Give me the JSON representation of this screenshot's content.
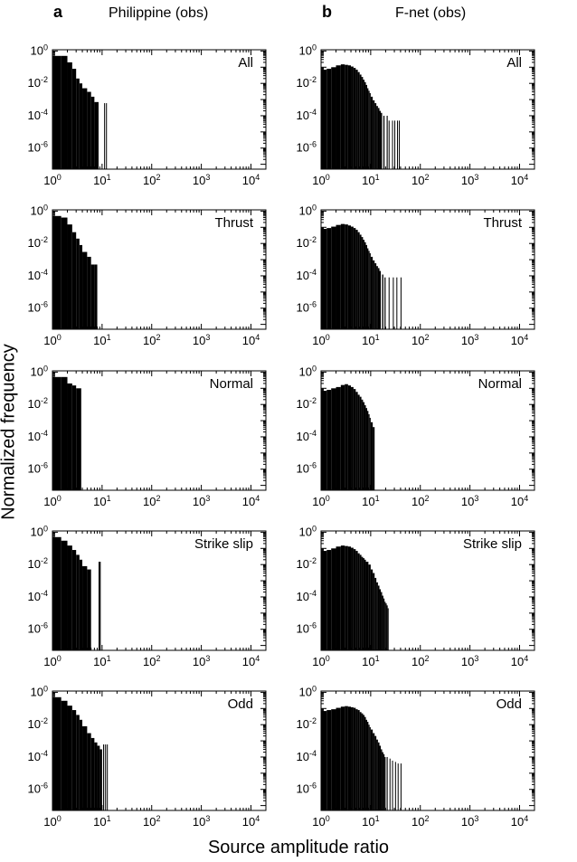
{
  "figure": {
    "ylabel": "Normalized frequency",
    "xlabel": "Source amplitude ratio",
    "columns": [
      {
        "letter": "a",
        "title": "Philippine (obs)"
      },
      {
        "letter": "b",
        "title": "F-net (obs)"
      }
    ]
  },
  "chart_data": [
    {
      "type": "bar",
      "column": "a",
      "panel_label": "All",
      "xscale": "log",
      "yscale": "log",
      "xlim": [
        1,
        20000
      ],
      "ylim": [
        5e-08,
        1.2
      ],
      "bins": [
        [
          1,
          1.5,
          0.5
        ],
        [
          1.5,
          2,
          0.5
        ],
        [
          2,
          2.5,
          0.2
        ],
        [
          2.5,
          3,
          0.08
        ],
        [
          3,
          3.5,
          0.02
        ],
        [
          3.5,
          4,
          0.01
        ],
        [
          4,
          5,
          0.005
        ],
        [
          5,
          6,
          0.003
        ],
        [
          6,
          7,
          0.0015
        ],
        [
          7,
          8.5,
          0.0007
        ],
        [
          11,
          11.4,
          0.0006
        ],
        [
          12,
          12.4,
          0.0006
        ]
      ]
    },
    {
      "type": "bar",
      "column": "b",
      "panel_label": "All",
      "xscale": "log",
      "yscale": "log",
      "xlim": [
        1,
        20000
      ],
      "ylim": [
        5e-08,
        1.2
      ],
      "bins": [
        [
          1,
          1.3,
          0.07
        ],
        [
          1.3,
          1.6,
          0.08
        ],
        [
          1.6,
          2,
          0.1
        ],
        [
          2,
          2.5,
          0.13
        ],
        [
          2.5,
          3,
          0.15
        ],
        [
          3,
          3.5,
          0.14
        ],
        [
          3.5,
          4,
          0.13
        ],
        [
          4,
          4.5,
          0.11
        ],
        [
          4.5,
          5,
          0.09
        ],
        [
          5,
          5.5,
          0.07
        ],
        [
          5.5,
          6,
          0.05
        ],
        [
          6,
          6.5,
          0.035
        ],
        [
          6.5,
          7,
          0.025
        ],
        [
          7,
          7.5,
          0.017
        ],
        [
          7.5,
          8,
          0.012
        ],
        [
          8,
          8.5,
          0.008
        ],
        [
          8.5,
          9,
          0.005
        ],
        [
          9,
          9.5,
          0.0035
        ],
        [
          9.5,
          10,
          0.0025
        ],
        [
          10,
          11,
          0.0015
        ],
        [
          11,
          12,
          0.0009
        ],
        [
          12,
          13,
          0.0006
        ],
        [
          13,
          14,
          0.0004
        ],
        [
          14,
          15,
          0.0003
        ],
        [
          15,
          16,
          0.0002
        ],
        [
          16,
          17,
          0.00015
        ],
        [
          18,
          19,
          0.0001
        ],
        [
          21,
          22,
          0.0001
        ],
        [
          23,
          24,
          5e-05
        ],
        [
          27,
          28,
          5e-05
        ],
        [
          30,
          31,
          5e-05
        ],
        [
          34,
          35,
          5e-05
        ],
        [
          37,
          38,
          5e-05
        ]
      ]
    },
    {
      "type": "bar",
      "column": "a",
      "panel_label": "Thrust",
      "xscale": "log",
      "yscale": "log",
      "xlim": [
        1,
        20000
      ],
      "ylim": [
        5e-08,
        1.2
      ],
      "bins": [
        [
          1,
          1.5,
          0.5
        ],
        [
          1.5,
          2,
          0.4
        ],
        [
          2,
          2.5,
          0.15
        ],
        [
          2.5,
          3,
          0.05
        ],
        [
          3,
          3.5,
          0.02
        ],
        [
          3.5,
          4,
          0.008
        ],
        [
          4,
          5,
          0.003
        ],
        [
          5,
          6,
          0.0015
        ],
        [
          6,
          7,
          0.0005
        ],
        [
          7,
          8,
          0.0005
        ]
      ]
    },
    {
      "type": "bar",
      "column": "b",
      "panel_label": "Thrust",
      "xscale": "log",
      "yscale": "log",
      "xlim": [
        1,
        20000
      ],
      "ylim": [
        5e-08,
        1.2
      ],
      "bins": [
        [
          1,
          1.3,
          0.08
        ],
        [
          1.3,
          1.6,
          0.09
        ],
        [
          1.6,
          2,
          0.11
        ],
        [
          2,
          2.5,
          0.14
        ],
        [
          2.5,
          3,
          0.16
        ],
        [
          3,
          3.5,
          0.15
        ],
        [
          3.5,
          4,
          0.13
        ],
        [
          4,
          4.5,
          0.11
        ],
        [
          4.5,
          5,
          0.09
        ],
        [
          5,
          5.5,
          0.07
        ],
        [
          5.5,
          6,
          0.05
        ],
        [
          6,
          6.5,
          0.035
        ],
        [
          6.5,
          7,
          0.025
        ],
        [
          7,
          7.5,
          0.017
        ],
        [
          7.5,
          8,
          0.012
        ],
        [
          8,
          8.5,
          0.008
        ],
        [
          8.5,
          9,
          0.005
        ],
        [
          9,
          9.5,
          0.0035
        ],
        [
          9.5,
          10,
          0.0025
        ],
        [
          10,
          11,
          0.0015
        ],
        [
          11,
          12,
          0.0009
        ],
        [
          12,
          13,
          0.0006
        ],
        [
          13,
          14,
          0.0004
        ],
        [
          14,
          15,
          0.0003
        ],
        [
          15,
          16,
          0.0002
        ],
        [
          17,
          18,
          0.00012
        ],
        [
          19,
          20,
          8e-05
        ],
        [
          23,
          24,
          8e-05
        ],
        [
          28,
          29,
          8e-05
        ],
        [
          33,
          34,
          8e-05
        ],
        [
          40,
          41,
          8e-05
        ]
      ]
    },
    {
      "type": "bar",
      "column": "a",
      "panel_label": "Normal",
      "xscale": "log",
      "yscale": "log",
      "xlim": [
        1,
        20000
      ],
      "ylim": [
        5e-08,
        1.2
      ],
      "bins": [
        [
          1,
          1.5,
          0.5
        ],
        [
          1.5,
          2,
          0.5
        ],
        [
          2,
          2.5,
          0.2
        ],
        [
          2.5,
          3,
          0.15
        ],
        [
          3,
          3.8,
          0.1
        ]
      ]
    },
    {
      "type": "bar",
      "column": "b",
      "panel_label": "Normal",
      "xscale": "log",
      "yscale": "log",
      "xlim": [
        1,
        20000
      ],
      "ylim": [
        5e-08,
        1.2
      ],
      "bins": [
        [
          1,
          1.3,
          0.07
        ],
        [
          1.3,
          1.6,
          0.08
        ],
        [
          1.6,
          2,
          0.1
        ],
        [
          2,
          2.5,
          0.12
        ],
        [
          2.5,
          3,
          0.16
        ],
        [
          3,
          3.5,
          0.18
        ],
        [
          3.5,
          4,
          0.15
        ],
        [
          4,
          4.5,
          0.12
        ],
        [
          4.5,
          5,
          0.09
        ],
        [
          5,
          5.5,
          0.06
        ],
        [
          5.5,
          6,
          0.04
        ],
        [
          6,
          6.5,
          0.03
        ],
        [
          6.5,
          7,
          0.02
        ],
        [
          7,
          7.5,
          0.014
        ],
        [
          7.5,
          8,
          0.009
        ],
        [
          8,
          8.5,
          0.006
        ],
        [
          8.5,
          9,
          0.004
        ],
        [
          9,
          9.5,
          0.0025
        ],
        [
          9.5,
          10,
          0.0015
        ],
        [
          10,
          11,
          0.0008
        ],
        [
          11,
          12,
          0.0004
        ]
      ]
    },
    {
      "type": "bar",
      "column": "a",
      "panel_label": "Strike slip",
      "xscale": "log",
      "yscale": "log",
      "xlim": [
        1,
        20000
      ],
      "ylim": [
        5e-08,
        1.2
      ],
      "bins": [
        [
          1,
          1.5,
          0.5
        ],
        [
          1.5,
          2,
          0.3
        ],
        [
          2,
          2.5,
          0.15
        ],
        [
          2.5,
          3,
          0.08
        ],
        [
          3,
          3.5,
          0.04
        ],
        [
          3.5,
          4,
          0.02
        ],
        [
          4,
          5,
          0.008
        ],
        [
          5,
          6,
          0.005
        ],
        [
          8.5,
          9,
          0.015
        ],
        [
          9,
          9.3,
          0.015
        ]
      ]
    },
    {
      "type": "bar",
      "column": "b",
      "panel_label": "Strike slip",
      "xscale": "log",
      "yscale": "log",
      "xlim": [
        1,
        20000
      ],
      "ylim": [
        5e-08,
        1.2
      ],
      "bins": [
        [
          1,
          1.3,
          0.07
        ],
        [
          1.3,
          1.6,
          0.08
        ],
        [
          1.6,
          2,
          0.1
        ],
        [
          2,
          2.5,
          0.13
        ],
        [
          2.5,
          3,
          0.15
        ],
        [
          3,
          3.5,
          0.14
        ],
        [
          3.5,
          4,
          0.13
        ],
        [
          4,
          4.5,
          0.11
        ],
        [
          4.5,
          5,
          0.09
        ],
        [
          5,
          5.5,
          0.07
        ],
        [
          5.5,
          6,
          0.05
        ],
        [
          6,
          6.5,
          0.04
        ],
        [
          6.5,
          7,
          0.03
        ],
        [
          7,
          7.5,
          0.025
        ],
        [
          7.5,
          8,
          0.02
        ],
        [
          8,
          9,
          0.015
        ],
        [
          9,
          10,
          0.01
        ],
        [
          10,
          11,
          0.005
        ],
        [
          11,
          12,
          0.003
        ],
        [
          12,
          13,
          0.0015
        ],
        [
          13,
          14,
          0.0008
        ],
        [
          14,
          15,
          0.0005
        ],
        [
          15,
          16,
          0.0003
        ],
        [
          16,
          17,
          0.0002
        ],
        [
          17,
          18,
          0.00012
        ],
        [
          18,
          19,
          8e-05
        ],
        [
          19,
          20,
          5e-05
        ],
        [
          20,
          21,
          4e-05
        ],
        [
          21,
          22,
          3e-05
        ],
        [
          22,
          23,
          2e-05
        ]
      ]
    },
    {
      "type": "bar",
      "column": "a",
      "panel_label": "Odd",
      "xscale": "log",
      "yscale": "log",
      "xlim": [
        1,
        20000
      ],
      "ylim": [
        5e-08,
        1.2
      ],
      "bins": [
        [
          1,
          1.5,
          0.5
        ],
        [
          1.5,
          2,
          0.3
        ],
        [
          2,
          2.5,
          0.15
        ],
        [
          2.5,
          3,
          0.08
        ],
        [
          3,
          3.5,
          0.04
        ],
        [
          3.5,
          4,
          0.02
        ],
        [
          4,
          5,
          0.008
        ],
        [
          5,
          6,
          0.003
        ],
        [
          6,
          7,
          0.0015
        ],
        [
          7,
          8,
          0.0008
        ],
        [
          8,
          9,
          0.0005
        ],
        [
          9,
          10,
          0.0003
        ],
        [
          10.5,
          11,
          0.0006
        ],
        [
          11.5,
          12,
          0.0006
        ],
        [
          12.5,
          13,
          0.0006
        ]
      ]
    },
    {
      "type": "bar",
      "column": "b",
      "panel_label": "Odd",
      "xscale": "log",
      "yscale": "log",
      "xlim": [
        1,
        20000
      ],
      "ylim": [
        5e-08,
        1.2
      ],
      "bins": [
        [
          1,
          1.3,
          0.07
        ],
        [
          1.3,
          1.6,
          0.08
        ],
        [
          1.6,
          2,
          0.09
        ],
        [
          2,
          2.5,
          0.11
        ],
        [
          2.5,
          3,
          0.13
        ],
        [
          3,
          3.5,
          0.14
        ],
        [
          3.5,
          4,
          0.13
        ],
        [
          4,
          4.5,
          0.12
        ],
        [
          4.5,
          5,
          0.11
        ],
        [
          5,
          5.5,
          0.09
        ],
        [
          5.5,
          6,
          0.08
        ],
        [
          6,
          6.5,
          0.06
        ],
        [
          6.5,
          7,
          0.05
        ],
        [
          7,
          7.5,
          0.04
        ],
        [
          7.5,
          8,
          0.03
        ],
        [
          8,
          8.5,
          0.02
        ],
        [
          8.5,
          9,
          0.015
        ],
        [
          9,
          9.5,
          0.01
        ],
        [
          9.5,
          10,
          0.007
        ],
        [
          10,
          11,
          0.005
        ],
        [
          11,
          12,
          0.003
        ],
        [
          12,
          13,
          0.002
        ],
        [
          13,
          14,
          0.0012
        ],
        [
          14,
          15,
          0.0008
        ],
        [
          15,
          16,
          0.0005
        ],
        [
          16,
          17,
          0.0003
        ],
        [
          17,
          18,
          0.0002
        ],
        [
          18,
          19,
          0.00015
        ],
        [
          19,
          20,
          0.0001
        ],
        [
          21,
          22,
          0.0001
        ],
        [
          24,
          25,
          8e-05
        ],
        [
          27,
          28,
          6e-05
        ],
        [
          31,
          32,
          5e-05
        ],
        [
          35,
          36,
          4e-05
        ],
        [
          40,
          41,
          4e-05
        ]
      ]
    }
  ]
}
